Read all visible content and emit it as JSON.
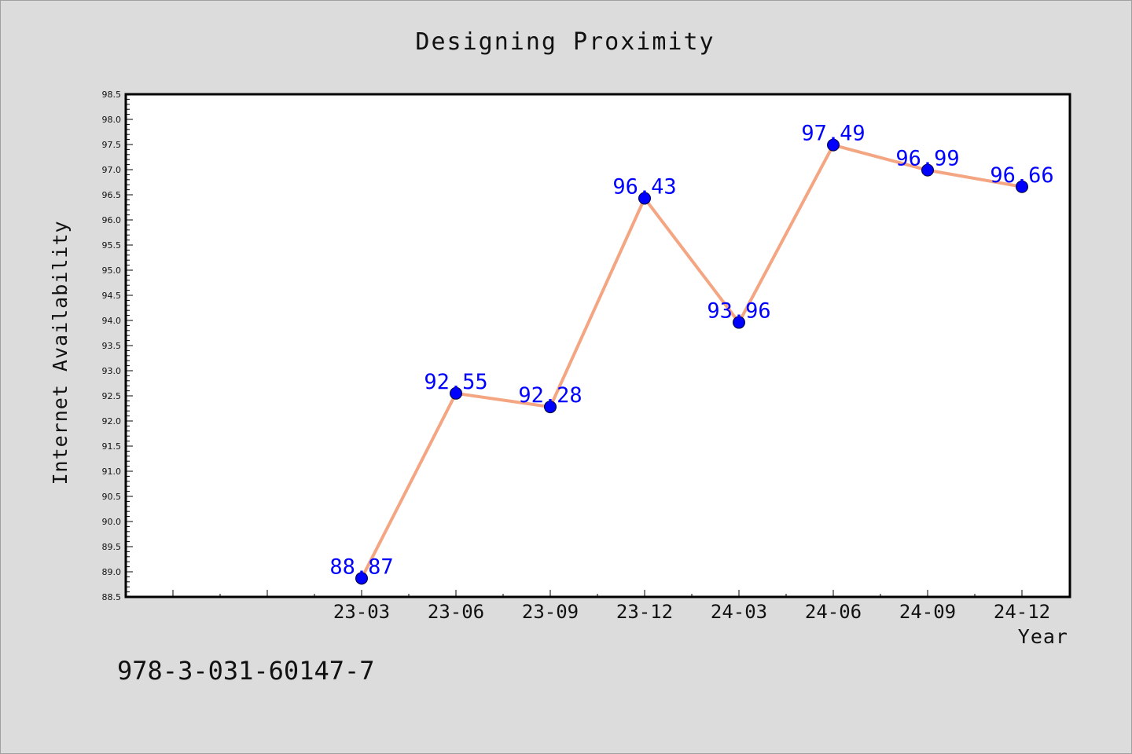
{
  "chart_data": {
    "type": "line",
    "title": "Designing Proximity",
    "xlabel": "Year",
    "ylabel": "Internet Availability",
    "categories": [
      "23-03",
      "23-06",
      "23-09",
      "23-12",
      "24-03",
      "24-06",
      "24-09",
      "24-12"
    ],
    "series": [
      {
        "values": [
          88.87,
          92.55,
          92.28,
          96.43,
          93.96,
          97.49,
          96.99,
          96.66
        ],
        "data_labels": [
          "88.87",
          "92.55",
          "92.28",
          "96.43",
          "93.96",
          "97.49",
          "96.99",
          "96.66"
        ]
      }
    ],
    "ylim": [
      88.5,
      98.5
    ],
    "yticks": [
      "88.5",
      "89.0",
      "89.5",
      "90.0",
      "90.5",
      "91.0",
      "91.5",
      "92.0",
      "92.5",
      "93.0",
      "93.5",
      "94.0",
      "94.5",
      "95.0",
      "95.5",
      "96.0",
      "96.5",
      "97.0",
      "97.5",
      "98.0",
      "98.5"
    ],
    "grid": false,
    "colors": {
      "line": "#f4a582",
      "marker": "#0000ff",
      "label": "#0000ff",
      "background": "#dcdcdc",
      "plot_background": "#ffffff"
    }
  },
  "footnote": "978-3-031-60147-7"
}
